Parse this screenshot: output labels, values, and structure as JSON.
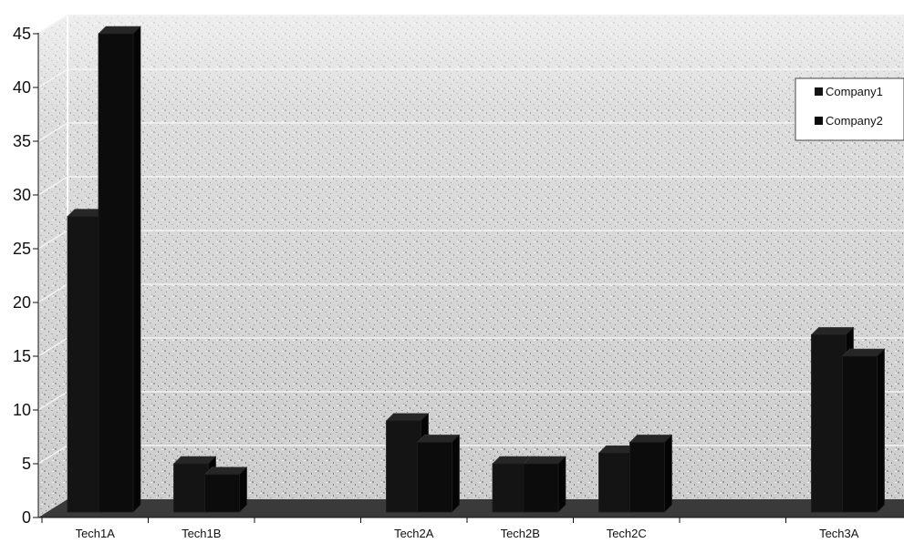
{
  "chart_data": {
    "type": "bar",
    "title": "",
    "xlabel": "",
    "ylabel": "",
    "ylim": [
      0,
      45
    ],
    "yticks": [
      0,
      5,
      10,
      15,
      20,
      25,
      30,
      35,
      40,
      45
    ],
    "grid": true,
    "legend_position": "top-right",
    "categories": [
      "Tech1A",
      "Tech1B",
      "",
      "Tech2A",
      "Tech2B",
      "Tech2C",
      "",
      "Tech3A"
    ],
    "series": [
      {
        "name": "Company1",
        "color": "#141414",
        "values": [
          28,
          5,
          null,
          9,
          5,
          6,
          null,
          17
        ]
      },
      {
        "name": "Company2",
        "color": "#0c0c0c",
        "values": [
          45,
          4,
          null,
          7,
          5,
          7,
          null,
          15
        ]
      }
    ],
    "style": "3d-clustered-column",
    "background": "textured-gray"
  }
}
